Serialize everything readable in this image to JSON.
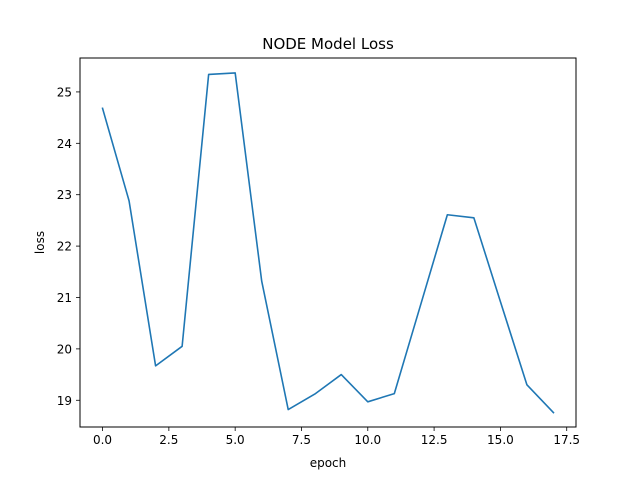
{
  "chart_data": {
    "type": "line",
    "title": "NODE Model Loss",
    "xlabel": "epoch",
    "ylabel": "loss",
    "xlim": [
      -0.85,
      17.85
    ],
    "ylim": [
      18.48,
      25.66
    ],
    "xticks": [
      0.0,
      2.5,
      5.0,
      7.5,
      10.0,
      12.5,
      15.0,
      17.5
    ],
    "xtick_labels": [
      "0.0",
      "2.5",
      "5.0",
      "7.5",
      "10.0",
      "12.5",
      "15.0",
      "17.5"
    ],
    "yticks": [
      19,
      20,
      21,
      22,
      23,
      24,
      25
    ],
    "ytick_labels": [
      "19",
      "20",
      "21",
      "22",
      "23",
      "24",
      "25"
    ],
    "grid": false,
    "series": [
      {
        "color": "#1f77b4",
        "x": [
          0,
          1,
          2,
          3,
          4,
          5,
          6,
          7,
          8,
          9,
          10,
          11,
          12,
          13,
          14,
          15,
          16,
          17
        ],
        "y": [
          24.68,
          22.88,
          19.67,
          20.05,
          25.34,
          25.37,
          21.32,
          18.82,
          19.12,
          19.5,
          18.97,
          19.13,
          20.87,
          22.61,
          22.55,
          20.92,
          19.3,
          18.76
        ]
      }
    ]
  }
}
